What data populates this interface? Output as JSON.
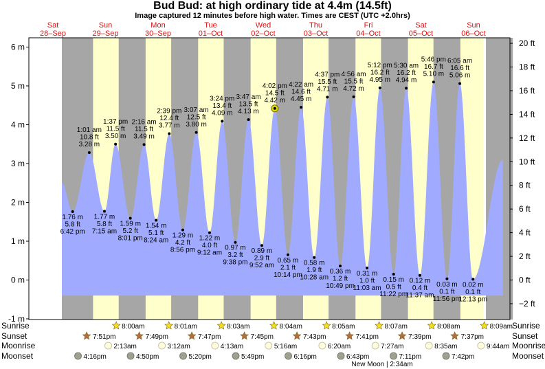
{
  "header": {
    "title": "Bud Bud: at high  ordinary tide at 4.4m (14.5ft)",
    "subtitle": "Image captured 12 minutes before high water. Times are CEST (UTC +2.0hrs)"
  },
  "colors": {
    "day_background": "#ffffcc",
    "night_background": "#a6a6a6",
    "water_fill": "#a0aaff",
    "frame_background": "#ffffff",
    "day_label_red": "#e01010",
    "star_yellow": "#f0e020",
    "star_brown": "#b07040",
    "moon_light": "#fffde0",
    "moon_dark": "#a0a090",
    "current_marker": "#e0e000"
  },
  "chart_data": {
    "type": "area",
    "title": "Bud Bud: at high  ordinary tide at 4.4m (14.5ft)",
    "ylabel_left_unit": "m",
    "ylabel_right_unit": "ft",
    "ylim": [
      -1,
      6.2
    ],
    "y_ticks_m": [
      "-1 m",
      "0 m",
      "1 m",
      "2 m",
      "3 m",
      "4 m",
      "5 m",
      "6 m"
    ],
    "y_ticks_ft": [
      "−2 ft",
      "0 ft",
      "2 ft",
      "4 ft",
      "6 ft",
      "8 ft",
      "10 ft",
      "12 ft",
      "14 ft",
      "16 ft",
      "18 ft",
      "20 ft"
    ],
    "x_range_days": [
      -0.26,
      8.13
    ],
    "days": [
      {
        "name": "Sat",
        "date": "28–Sep"
      },
      {
        "name": "Sun",
        "date": "29–Sep"
      },
      {
        "name": "Mon",
        "date": "30–Sep"
      },
      {
        "name": "Tue",
        "date": "01–Oct"
      },
      {
        "name": "Wed",
        "date": "02–Oct"
      },
      {
        "name": "Thu",
        "date": "03–Oct"
      },
      {
        "name": "Fri",
        "date": "04–Oct"
      },
      {
        "name": "Sat",
        "date": "05–Oct"
      },
      {
        "name": "Sun",
        "date": "06–Oct"
      }
    ],
    "nights": [
      [
        -0.26,
        0.333
      ],
      [
        0.821,
        1.333
      ],
      [
        1.82,
        1.334
      ],
      [
        2.818,
        2.335
      ],
      [
        3.816,
        3.336
      ],
      [
        4.813,
        4.337
      ],
      [
        5.811,
        5.338
      ],
      [
        6.808,
        6.339
      ],
      [
        7.806,
        7.34
      ]
    ],
    "series": [
      {
        "name": "",
        "start_day": -0.26,
        "start_height_m": 2.5,
        "end_day": 8.13,
        "end_height_m": 3.1,
        "extremes": [
          {
            "day": -0.055,
            "height_m": 1.76,
            "time": "6:42 pm",
            "m_label": "1.76 m",
            "ft_label": "5.8 ft",
            "kind": "low"
          },
          {
            "day": 0.261,
            "height_m": 3.28,
            "time": "1:01 am",
            "m_label": "3.28 m",
            "ft_label": "10.8 ft",
            "kind": "high"
          },
          {
            "day": 0.55,
            "height_m": 1.77,
            "time": "7:15 am",
            "m_label": "1.77 m",
            "ft_label": "5.8 ft",
            "kind": "low"
          },
          {
            "day": 0.761,
            "height_m": 3.5,
            "time": "1:37 pm",
            "m_label": "3.50 m",
            "ft_label": "11.5 ft",
            "kind": "high"
          },
          {
            "day": 1.043,
            "height_m": 1.59,
            "time": "8:01 pm",
            "m_label": "1.59 m",
            "ft_label": "5.2 ft",
            "kind": "low"
          },
          {
            "day": 1.303,
            "height_m": 3.49,
            "time": "2:16 am",
            "m_label": "3.49 m",
            "ft_label": "11.5 ft",
            "kind": "high"
          },
          {
            "day": 1.533,
            "height_m": 1.54,
            "time": "8:24 am",
            "m_label": "1.54 m",
            "ft_label": "5.1 ft",
            "kind": "low"
          },
          {
            "day": 1.783,
            "height_m": 3.77,
            "time": "2:39 pm",
            "m_label": "3.77 m",
            "ft_label": "12.4 ft",
            "kind": "high"
          },
          {
            "day": 2.04,
            "height_m": 1.29,
            "time": "8:56 pm",
            "m_label": "1.29 m",
            "ft_label": "4.2 ft",
            "kind": "low"
          },
          {
            "day": 2.297,
            "height_m": 3.8,
            "time": "3:07 am",
            "m_label": "3.80 m",
            "ft_label": "12.5 ft",
            "kind": "high"
          },
          {
            "day": 2.55,
            "height_m": 1.22,
            "time": "9:12 am",
            "m_label": "1.22 m",
            "ft_label": "4.0 ft",
            "kind": "low"
          },
          {
            "day": 2.789,
            "height_m": 4.09,
            "time": "3:24 pm",
            "m_label": "4.09 m",
            "ft_label": "13.4 ft",
            "kind": "high"
          },
          {
            "day": 3.04,
            "height_m": 0.97,
            "time": "9:38 pm",
            "m_label": "0.97 m",
            "ft_label": "3.2 ft",
            "kind": "low"
          },
          {
            "day": 3.29,
            "height_m": 4.13,
            "time": "3:47 am",
            "m_label": "4.13 m",
            "ft_label": "13.5 ft",
            "kind": "high"
          },
          {
            "day": 3.543,
            "height_m": 0.89,
            "time": "9:52 am",
            "m_label": "0.89 m",
            "ft_label": "2.9 ft",
            "kind": "low"
          },
          {
            "day": 3.79,
            "height_m": 4.42,
            "time": "4:02 pm",
            "m_label": "4.42 m",
            "ft_label": "14.5 ft",
            "kind": "high"
          },
          {
            "day": 4.04,
            "height_m": 0.65,
            "time": "10:14 pm",
            "m_label": "0.65 m",
            "ft_label": "2.1 ft",
            "kind": "low"
          },
          {
            "day": 4.29,
            "height_m": 4.45,
            "time": "4:22 am",
            "m_label": "4.45 m",
            "ft_label": "14.6 ft",
            "kind": "high"
          },
          {
            "day": 4.54,
            "height_m": 0.58,
            "time": "10:28 am",
            "m_label": "0.58 m",
            "ft_label": "1.9 ft",
            "kind": "low"
          },
          {
            "day": 4.79,
            "height_m": 4.71,
            "time": "4:37 pm",
            "m_label": "4.71 m",
            "ft_label": "15.5 ft",
            "kind": "high"
          },
          {
            "day": 5.035,
            "height_m": 0.36,
            "time": "10:49 pm",
            "m_label": "0.36 m",
            "ft_label": "1.2 ft",
            "kind": "low"
          },
          {
            "day": 5.29,
            "height_m": 4.72,
            "time": "4:56 am",
            "m_label": "4.72 m",
            "ft_label": "15.5 ft",
            "kind": "high"
          },
          {
            "day": 5.545,
            "height_m": 0.31,
            "time": "11:03 am",
            "m_label": "0.31 m",
            "ft_label": "1.0 ft",
            "kind": "low"
          },
          {
            "day": 5.79,
            "height_m": 4.95,
            "time": "5:12 pm",
            "m_label": "4.95 m",
            "ft_label": "16.2 ft",
            "kind": "high"
          },
          {
            "day": 6.05,
            "height_m": 0.15,
            "time": "11:22 pm",
            "m_label": "0.15 m",
            "ft_label": "0.5 ft",
            "kind": "low"
          },
          {
            "day": 6.29,
            "height_m": 4.94,
            "time": "5:30 am",
            "m_label": "4.94 m",
            "ft_label": "16.2 ft",
            "kind": "high"
          },
          {
            "day": 6.55,
            "height_m": 0.12,
            "time": "11:37 am",
            "m_label": "0.12 m",
            "ft_label": "0.4 ft",
            "kind": "low"
          },
          {
            "day": 6.81,
            "height_m": 5.1,
            "time": "5:46 pm",
            "m_label": "5.10 m",
            "ft_label": "16.7 ft",
            "kind": "high"
          },
          {
            "day": 7.065,
            "height_m": 0.03,
            "time": "11:56 pm",
            "m_label": "0.03 m",
            "ft_label": "0.1 ft",
            "kind": "low"
          },
          {
            "day": 7.31,
            "height_m": 5.06,
            "time": "6:05 am",
            "m_label": "5.06 m",
            "ft_label": "16.6 ft",
            "kind": "high"
          },
          {
            "day": 7.56,
            "height_m": 0.02,
            "time": "12:13 pm",
            "m_label": "0.02 m",
            "ft_label": "0.1 ft",
            "kind": "low"
          }
        ]
      }
    ],
    "current_marker": {
      "day": 3.79,
      "height_m": 4.42
    }
  },
  "almanac": {
    "row_labels": {
      "left": [
        "Sunrise",
        "Sunset",
        "Moonrise",
        "Moonset"
      ],
      "right": [
        "Sunrise",
        "Sunset",
        "Moonrise",
        "Moonset"
      ]
    },
    "sunrise": [
      {
        "day": 0.84,
        "time": "8:00am"
      },
      {
        "day": 1.84,
        "time": "8:01am"
      },
      {
        "day": 2.84,
        "time": "8:03am"
      },
      {
        "day": 3.84,
        "time": "8:04am"
      },
      {
        "day": 4.84,
        "time": "8:05am"
      },
      {
        "day": 5.84,
        "time": "8:07am"
      },
      {
        "day": 6.84,
        "time": "8:08am"
      },
      {
        "day": 7.84,
        "time": "8:09am"
      }
    ],
    "sunset": [
      {
        "day": 0.33,
        "time": "7:51pm"
      },
      {
        "day": 1.33,
        "time": "7:49pm"
      },
      {
        "day": 2.33,
        "time": "7:47pm"
      },
      {
        "day": 3.33,
        "time": "7:45pm"
      },
      {
        "day": 4.33,
        "time": "7:43pm"
      },
      {
        "day": 5.33,
        "time": "7:41pm"
      },
      {
        "day": 6.33,
        "time": "7:39pm"
      },
      {
        "day": 7.33,
        "time": "7:37pm"
      }
    ],
    "moonrise": [
      {
        "day": 0.91,
        "time": "2:13am"
      },
      {
        "day": 1.93,
        "time": "3:12am"
      },
      {
        "day": 2.94,
        "time": "4:13am"
      },
      {
        "day": 3.96,
        "time": "5:16am"
      },
      {
        "day": 4.98,
        "time": "6:20am"
      },
      {
        "day": 5.99,
        "time": "7:27am"
      },
      {
        "day": 7.01,
        "time": "8:35am"
      },
      {
        "day": 8.0,
        "time": "9:44am"
      }
    ],
    "moonset": [
      {
        "day": 0.1,
        "time": "4:16pm"
      },
      {
        "day": 1.1,
        "time": "4:50pm"
      },
      {
        "day": 2.1,
        "time": "5:20pm"
      },
      {
        "day": 3.1,
        "time": "5:49pm"
      },
      {
        "day": 4.1,
        "time": "6:16pm"
      },
      {
        "day": 5.1,
        "time": "6:43pm"
      },
      {
        "day": 6.1,
        "time": "7:11pm"
      },
      {
        "day": 7.1,
        "time": "7:42pm"
      }
    ],
    "new_moon": {
      "day": 5.95,
      "text": "New Moon | 2:34am"
    }
  }
}
